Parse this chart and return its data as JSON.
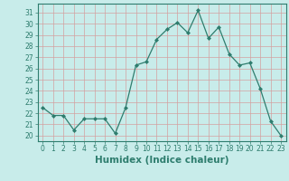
{
  "xlabel": "Humidex (Indice chaleur)",
  "x": [
    0,
    1,
    2,
    3,
    4,
    5,
    6,
    7,
    8,
    9,
    10,
    11,
    12,
    13,
    14,
    15,
    16,
    17,
    18,
    19,
    20,
    21,
    22,
    23
  ],
  "y": [
    22.5,
    21.8,
    21.8,
    20.5,
    21.5,
    21.5,
    21.5,
    20.2,
    22.5,
    26.3,
    26.6,
    28.6,
    29.5,
    30.1,
    29.2,
    31.2,
    28.7,
    29.7,
    27.3,
    26.3,
    26.5,
    24.2,
    21.3,
    20.0
  ],
  "line_color": "#2e7d6e",
  "marker": "D",
  "marker_size": 2.0,
  "bg_color": "#c8ecea",
  "grid_color": "#d4a0a0",
  "ylim": [
    19.5,
    31.8
  ],
  "yticks": [
    20,
    21,
    22,
    23,
    24,
    25,
    26,
    27,
    28,
    29,
    30,
    31
  ],
  "xticks": [
    0,
    1,
    2,
    3,
    4,
    5,
    6,
    7,
    8,
    9,
    10,
    11,
    12,
    13,
    14,
    15,
    16,
    17,
    18,
    19,
    20,
    21,
    22,
    23
  ],
  "tick_fontsize": 5.5,
  "xlabel_fontsize": 7.5,
  "label_color": "#2e7d6e"
}
